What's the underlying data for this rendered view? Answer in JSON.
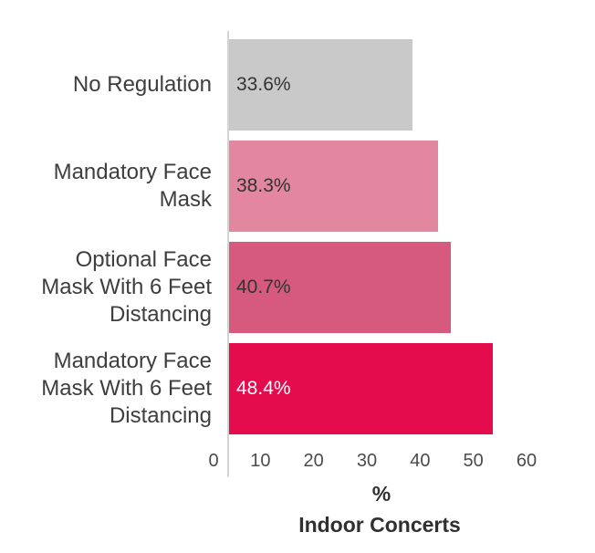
{
  "chart_data": {
    "type": "bar",
    "orientation": "horizontal",
    "title": "",
    "xlabel": "%",
    "xlabel_sub": "Indoor Concerts",
    "categories": [
      "No Regulation",
      "Mandatory Face\nMask",
      "Optional Face\nMask With 6 Feet\nDistancing",
      "Mandatory Face\nMask With 6 Feet\nDistancing"
    ],
    "values": [
      33.6,
      38.3,
      40.7,
      48.4
    ],
    "value_labels": [
      "33.6%",
      "38.3%",
      "40.7%",
      "48.4%"
    ],
    "bar_colors": [
      "#c9c9c9",
      "#e2879f",
      "#d55a7d",
      "#e40c4d"
    ],
    "value_label_colors": [
      "#333333",
      "#333333",
      "#333333",
      "#ffffff"
    ],
    "x_ticks": [
      0,
      10,
      20,
      30,
      40,
      50,
      60
    ],
    "x_tick_labels": [
      "0",
      "10",
      "20",
      "30",
      "40",
      "50",
      "60"
    ],
    "xlim": [
      0,
      60
    ],
    "grid": false,
    "legend": false,
    "colors": {
      "axis_line": "#d4d4d4",
      "category_text": "#3e3e3e",
      "tick_text": "#4b4b4b",
      "axis_title_text": "#303030"
    }
  }
}
